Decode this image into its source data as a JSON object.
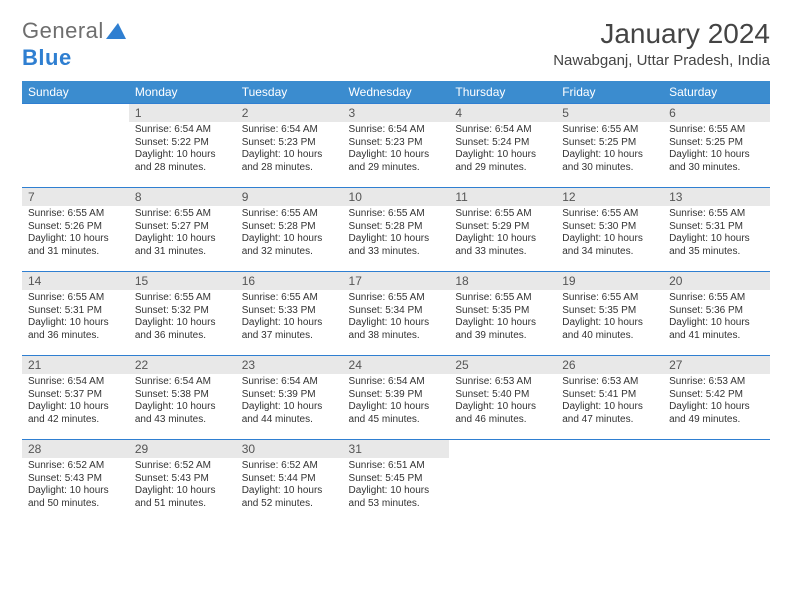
{
  "logo": {
    "text1": "General",
    "text2": "Blue"
  },
  "title": "January 2024",
  "location": "Nawabganj, Uttar Pradesh, India",
  "colors": {
    "header_bg": "#3b8ccf",
    "header_text": "#ffffff",
    "daynum_bg": "#e8e8e8",
    "rule": "#2f7fd1",
    "body_text": "#333333"
  },
  "weekdays": [
    "Sunday",
    "Monday",
    "Tuesday",
    "Wednesday",
    "Thursday",
    "Friday",
    "Saturday"
  ],
  "weeks": [
    [
      null,
      {
        "n": "1",
        "sr": "Sunrise: 6:54 AM",
        "ss": "Sunset: 5:22 PM",
        "d1": "Daylight: 10 hours",
        "d2": "and 28 minutes."
      },
      {
        "n": "2",
        "sr": "Sunrise: 6:54 AM",
        "ss": "Sunset: 5:23 PM",
        "d1": "Daylight: 10 hours",
        "d2": "and 28 minutes."
      },
      {
        "n": "3",
        "sr": "Sunrise: 6:54 AM",
        "ss": "Sunset: 5:23 PM",
        "d1": "Daylight: 10 hours",
        "d2": "and 29 minutes."
      },
      {
        "n": "4",
        "sr": "Sunrise: 6:54 AM",
        "ss": "Sunset: 5:24 PM",
        "d1": "Daylight: 10 hours",
        "d2": "and 29 minutes."
      },
      {
        "n": "5",
        "sr": "Sunrise: 6:55 AM",
        "ss": "Sunset: 5:25 PM",
        "d1": "Daylight: 10 hours",
        "d2": "and 30 minutes."
      },
      {
        "n": "6",
        "sr": "Sunrise: 6:55 AM",
        "ss": "Sunset: 5:25 PM",
        "d1": "Daylight: 10 hours",
        "d2": "and 30 minutes."
      }
    ],
    [
      {
        "n": "7",
        "sr": "Sunrise: 6:55 AM",
        "ss": "Sunset: 5:26 PM",
        "d1": "Daylight: 10 hours",
        "d2": "and 31 minutes."
      },
      {
        "n": "8",
        "sr": "Sunrise: 6:55 AM",
        "ss": "Sunset: 5:27 PM",
        "d1": "Daylight: 10 hours",
        "d2": "and 31 minutes."
      },
      {
        "n": "9",
        "sr": "Sunrise: 6:55 AM",
        "ss": "Sunset: 5:28 PM",
        "d1": "Daylight: 10 hours",
        "d2": "and 32 minutes."
      },
      {
        "n": "10",
        "sr": "Sunrise: 6:55 AM",
        "ss": "Sunset: 5:28 PM",
        "d1": "Daylight: 10 hours",
        "d2": "and 33 minutes."
      },
      {
        "n": "11",
        "sr": "Sunrise: 6:55 AM",
        "ss": "Sunset: 5:29 PM",
        "d1": "Daylight: 10 hours",
        "d2": "and 33 minutes."
      },
      {
        "n": "12",
        "sr": "Sunrise: 6:55 AM",
        "ss": "Sunset: 5:30 PM",
        "d1": "Daylight: 10 hours",
        "d2": "and 34 minutes."
      },
      {
        "n": "13",
        "sr": "Sunrise: 6:55 AM",
        "ss": "Sunset: 5:31 PM",
        "d1": "Daylight: 10 hours",
        "d2": "and 35 minutes."
      }
    ],
    [
      {
        "n": "14",
        "sr": "Sunrise: 6:55 AM",
        "ss": "Sunset: 5:31 PM",
        "d1": "Daylight: 10 hours",
        "d2": "and 36 minutes."
      },
      {
        "n": "15",
        "sr": "Sunrise: 6:55 AM",
        "ss": "Sunset: 5:32 PM",
        "d1": "Daylight: 10 hours",
        "d2": "and 36 minutes."
      },
      {
        "n": "16",
        "sr": "Sunrise: 6:55 AM",
        "ss": "Sunset: 5:33 PM",
        "d1": "Daylight: 10 hours",
        "d2": "and 37 minutes."
      },
      {
        "n": "17",
        "sr": "Sunrise: 6:55 AM",
        "ss": "Sunset: 5:34 PM",
        "d1": "Daylight: 10 hours",
        "d2": "and 38 minutes."
      },
      {
        "n": "18",
        "sr": "Sunrise: 6:55 AM",
        "ss": "Sunset: 5:35 PM",
        "d1": "Daylight: 10 hours",
        "d2": "and 39 minutes."
      },
      {
        "n": "19",
        "sr": "Sunrise: 6:55 AM",
        "ss": "Sunset: 5:35 PM",
        "d1": "Daylight: 10 hours",
        "d2": "and 40 minutes."
      },
      {
        "n": "20",
        "sr": "Sunrise: 6:55 AM",
        "ss": "Sunset: 5:36 PM",
        "d1": "Daylight: 10 hours",
        "d2": "and 41 minutes."
      }
    ],
    [
      {
        "n": "21",
        "sr": "Sunrise: 6:54 AM",
        "ss": "Sunset: 5:37 PM",
        "d1": "Daylight: 10 hours",
        "d2": "and 42 minutes."
      },
      {
        "n": "22",
        "sr": "Sunrise: 6:54 AM",
        "ss": "Sunset: 5:38 PM",
        "d1": "Daylight: 10 hours",
        "d2": "and 43 minutes."
      },
      {
        "n": "23",
        "sr": "Sunrise: 6:54 AM",
        "ss": "Sunset: 5:39 PM",
        "d1": "Daylight: 10 hours",
        "d2": "and 44 minutes."
      },
      {
        "n": "24",
        "sr": "Sunrise: 6:54 AM",
        "ss": "Sunset: 5:39 PM",
        "d1": "Daylight: 10 hours",
        "d2": "and 45 minutes."
      },
      {
        "n": "25",
        "sr": "Sunrise: 6:53 AM",
        "ss": "Sunset: 5:40 PM",
        "d1": "Daylight: 10 hours",
        "d2": "and 46 minutes."
      },
      {
        "n": "26",
        "sr": "Sunrise: 6:53 AM",
        "ss": "Sunset: 5:41 PM",
        "d1": "Daylight: 10 hours",
        "d2": "and 47 minutes."
      },
      {
        "n": "27",
        "sr": "Sunrise: 6:53 AM",
        "ss": "Sunset: 5:42 PM",
        "d1": "Daylight: 10 hours",
        "d2": "and 49 minutes."
      }
    ],
    [
      {
        "n": "28",
        "sr": "Sunrise: 6:52 AM",
        "ss": "Sunset: 5:43 PM",
        "d1": "Daylight: 10 hours",
        "d2": "and 50 minutes."
      },
      {
        "n": "29",
        "sr": "Sunrise: 6:52 AM",
        "ss": "Sunset: 5:43 PM",
        "d1": "Daylight: 10 hours",
        "d2": "and 51 minutes."
      },
      {
        "n": "30",
        "sr": "Sunrise: 6:52 AM",
        "ss": "Sunset: 5:44 PM",
        "d1": "Daylight: 10 hours",
        "d2": "and 52 minutes."
      },
      {
        "n": "31",
        "sr": "Sunrise: 6:51 AM",
        "ss": "Sunset: 5:45 PM",
        "d1": "Daylight: 10 hours",
        "d2": "and 53 minutes."
      },
      null,
      null,
      null
    ]
  ]
}
